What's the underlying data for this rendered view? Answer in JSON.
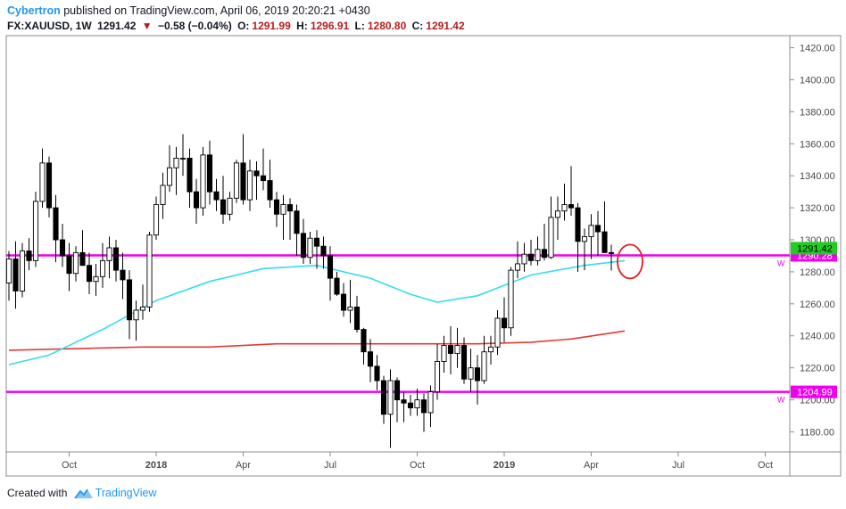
{
  "header": {
    "author": "Cybertron",
    "published": "published on TradingView.com, April 06, 2019 20:20:21 +0430",
    "symbol": "FX:XAUUSD, 1W",
    "last": "1291.42",
    "change": "−0.58 (−0.04%)",
    "o_label": "O:",
    "o_value": "1291.99",
    "h_label": "H:",
    "h_value": "1296.91",
    "l_label": "L:",
    "l_value": "1280.80",
    "c_label": "C:",
    "c_value": "1291.42"
  },
  "footer": {
    "created_with": "Created with",
    "brand": "TradingView"
  },
  "colors": {
    "up": "#ffffff",
    "down": "#000000",
    "wick": "#000000",
    "ma_fast": "#33ddee",
    "ma_slow": "#e53935",
    "hline": "#ee00ee",
    "price_label": "#22cc22",
    "circle": "#dd2222"
  },
  "chart_data": {
    "type": "candlestick",
    "symbol": "FX:XAUUSD",
    "interval": "1W",
    "ylim": [
      1168,
      1427
    ],
    "y_ticks": [
      1180,
      1200,
      1220,
      1240,
      1260,
      1280,
      1300,
      1320,
      1340,
      1360,
      1380,
      1400,
      1420
    ],
    "y_tick_labels": [
      "1180.00",
      "1200.00",
      "1220.00",
      "1240.00",
      "1260.00",
      "1280.00",
      "1300.00",
      "1320.00",
      "1340.00",
      "1360.00",
      "1380.00",
      "1400.00",
      "1420.00"
    ],
    "x_ticks": [
      {
        "label": "Oct",
        "week": 9
      },
      {
        "label": "2018",
        "week": 22
      },
      {
        "label": "Apr",
        "week": 35
      },
      {
        "label": "Jul",
        "week": 48
      },
      {
        "label": "Oct",
        "week": 61
      },
      {
        "label": "2019",
        "week": 74
      },
      {
        "label": "Apr",
        "week": 87
      },
      {
        "label": "Jul",
        "week": 100
      },
      {
        "label": "Oct",
        "week": 113
      }
    ],
    "candles": [
      [
        1273,
        1293,
        1262,
        1288
      ],
      [
        1288,
        1299,
        1257,
        1268
      ],
      [
        1268,
        1298,
        1264,
        1293
      ],
      [
        1293,
        1301,
        1281,
        1287
      ],
      [
        1287,
        1330,
        1283,
        1324
      ],
      [
        1324,
        1357,
        1320,
        1348
      ],
      [
        1348,
        1352,
        1314,
        1320
      ],
      [
        1320,
        1328,
        1286,
        1300
      ],
      [
        1300,
        1310,
        1283,
        1290
      ],
      [
        1290,
        1298,
        1268,
        1279
      ],
      [
        1279,
        1296,
        1274,
        1292
      ],
      [
        1292,
        1306,
        1285,
        1284
      ],
      [
        1284,
        1292,
        1266,
        1274
      ],
      [
        1274,
        1285,
        1265,
        1277
      ],
      [
        1277,
        1298,
        1270,
        1287
      ],
      [
        1287,
        1302,
        1276,
        1295
      ],
      [
        1295,
        1300,
        1274,
        1281
      ],
      [
        1281,
        1292,
        1263,
        1275
      ],
      [
        1275,
        1281,
        1238,
        1250
      ],
      [
        1250,
        1262,
        1237,
        1256
      ],
      [
        1256,
        1272,
        1250,
        1258
      ],
      [
        1258,
        1305,
        1255,
        1303
      ],
      [
        1303,
        1327,
        1300,
        1322
      ],
      [
        1322,
        1342,
        1313,
        1334
      ],
      [
        1334,
        1359,
        1330,
        1345
      ],
      [
        1345,
        1358,
        1328,
        1351
      ],
      [
        1351,
        1366,
        1340,
        1351
      ],
      [
        1351,
        1357,
        1320,
        1330
      ],
      [
        1330,
        1338,
        1310,
        1320
      ],
      [
        1320,
        1358,
        1315,
        1353
      ],
      [
        1353,
        1362,
        1322,
        1330
      ],
      [
        1330,
        1338,
        1318,
        1325
      ],
      [
        1325,
        1340,
        1310,
        1316
      ],
      [
        1316,
        1330,
        1312,
        1326
      ],
      [
        1326,
        1350,
        1323,
        1348
      ],
      [
        1348,
        1366,
        1322,
        1325
      ],
      [
        1325,
        1350,
        1318,
        1343
      ],
      [
        1343,
        1349,
        1325,
        1340
      ],
      [
        1340,
        1357,
        1331,
        1337
      ],
      [
        1337,
        1350,
        1320,
        1325
      ],
      [
        1325,
        1330,
        1308,
        1316
      ],
      [
        1316,
        1328,
        1300,
        1322
      ],
      [
        1322,
        1326,
        1300,
        1318
      ],
      [
        1318,
        1322,
        1290,
        1304
      ],
      [
        1304,
        1313,
        1285,
        1289
      ],
      [
        1289,
        1305,
        1285,
        1301
      ],
      [
        1301,
        1306,
        1282,
        1296
      ],
      [
        1296,
        1302,
        1282,
        1290
      ],
      [
        1290,
        1296,
        1262,
        1276
      ],
      [
        1276,
        1280,
        1265,
        1266
      ],
      [
        1266,
        1273,
        1252,
        1256
      ],
      [
        1256,
        1275,
        1248,
        1258
      ],
      [
        1258,
        1265,
        1242,
        1244
      ],
      [
        1244,
        1245,
        1222,
        1230
      ],
      [
        1230,
        1238,
        1211,
        1221
      ],
      [
        1221,
        1228,
        1206,
        1212
      ],
      [
        1212,
        1215,
        1185,
        1191
      ],
      [
        1191,
        1219,
        1170,
        1212
      ],
      [
        1212,
        1214,
        1186,
        1200
      ],
      [
        1200,
        1205,
        1186,
        1198
      ],
      [
        1198,
        1203,
        1190,
        1195
      ],
      [
        1195,
        1207,
        1190,
        1200
      ],
      [
        1200,
        1204,
        1180,
        1192
      ],
      [
        1192,
        1209,
        1183,
        1205
      ],
      [
        1205,
        1235,
        1200,
        1224
      ],
      [
        1224,
        1240,
        1217,
        1234
      ],
      [
        1234,
        1246,
        1216,
        1229
      ],
      [
        1229,
        1245,
        1220,
        1234
      ],
      [
        1234,
        1239,
        1210,
        1213
      ],
      [
        1213,
        1232,
        1205,
        1220
      ],
      [
        1220,
        1228,
        1197,
        1212
      ],
      [
        1212,
        1240,
        1210,
        1230
      ],
      [
        1230,
        1240,
        1222,
        1233
      ],
      [
        1233,
        1256,
        1228,
        1251
      ],
      [
        1251,
        1264,
        1236,
        1245
      ],
      [
        1245,
        1283,
        1240,
        1281
      ],
      [
        1281,
        1299,
        1276,
        1285
      ],
      [
        1285,
        1298,
        1280,
        1291
      ],
      [
        1291,
        1300,
        1284,
        1287
      ],
      [
        1287,
        1302,
        1284,
        1294
      ],
      [
        1294,
        1310,
        1287,
        1289
      ],
      [
        1289,
        1327,
        1288,
        1314
      ],
      [
        1314,
        1327,
        1300,
        1318
      ],
      [
        1318,
        1335,
        1312,
        1322
      ],
      [
        1322,
        1346,
        1315,
        1320
      ],
      [
        1320,
        1323,
        1280,
        1299
      ],
      [
        1299,
        1307,
        1281,
        1302
      ],
      [
        1302,
        1316,
        1288,
        1309
      ],
      [
        1309,
        1318,
        1290,
        1305
      ],
      [
        1305,
        1324,
        1294,
        1292
      ],
      [
        1291.99,
        1296.91,
        1280.8,
        1291.42
      ]
    ],
    "ma_fast": [
      [
        0,
        1222
      ],
      [
        6,
        1228
      ],
      [
        14,
        1244
      ],
      [
        22,
        1262
      ],
      [
        30,
        1274
      ],
      [
        38,
        1282
      ],
      [
        46,
        1284
      ],
      [
        54,
        1276
      ],
      [
        60,
        1266
      ],
      [
        64,
        1261
      ],
      [
        70,
        1265
      ],
      [
        78,
        1278
      ],
      [
        86,
        1284
      ],
      [
        92,
        1287
      ]
    ],
    "ma_slow": [
      [
        0,
        1231
      ],
      [
        10,
        1232
      ],
      [
        20,
        1233
      ],
      [
        30,
        1233
      ],
      [
        40,
        1235
      ],
      [
        50,
        1235
      ],
      [
        60,
        1235
      ],
      [
        70,
        1235
      ],
      [
        78,
        1236
      ],
      [
        84,
        1238
      ],
      [
        92,
        1243
      ]
    ],
    "horizontal_lines": [
      {
        "value": 1290.28,
        "label": "1290.28"
      },
      {
        "value": 1204.99,
        "label": "1204.99"
      }
    ],
    "last_price_label": "1291.42",
    "hline_marker": "W",
    "annotation": {
      "type": "circle",
      "week": 92,
      "value": 1287
    }
  }
}
